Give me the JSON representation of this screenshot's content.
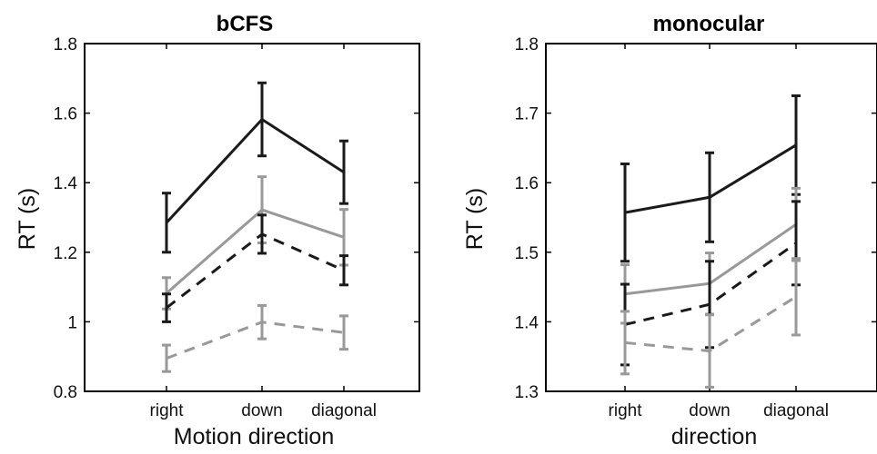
{
  "chart_data": [
    {
      "type": "line",
      "title": "bCFS",
      "xlabel": "Motion direction",
      "ylabel": "RT (s)",
      "categories": [
        "right",
        "down",
        "diagonal"
      ],
      "ylim": [
        0.8,
        1.8
      ],
      "yticks": [
        "0.8",
        "1",
        "1.2",
        "1.4",
        "1.6",
        "1.8"
      ],
      "grid": false,
      "series": [
        {
          "color": "#1a1a1a",
          "dash": false,
          "values": [
            1.285,
            1.582,
            1.43
          ],
          "errors": [
            0.085,
            0.105,
            0.09
          ]
        },
        {
          "color": "#999999",
          "dash": false,
          "values": [
            1.082,
            1.322,
            1.243
          ],
          "errors": [
            0.045,
            0.095,
            0.08
          ]
        },
        {
          "color": "#1a1a1a",
          "dash": true,
          "values": [
            1.04,
            1.252,
            1.148
          ],
          "errors": [
            0.04,
            0.055,
            0.042
          ]
        },
        {
          "color": "#999999",
          "dash": true,
          "values": [
            0.895,
            0.999,
            0.969
          ],
          "errors": [
            0.038,
            0.048,
            0.048
          ]
        }
      ]
    },
    {
      "type": "line",
      "title": "monocular",
      "xlabel": "direction",
      "ylabel": "RT (s)",
      "categories": [
        "right",
        "down",
        "diagonal"
      ],
      "ylim": [
        1.3,
        1.8
      ],
      "yticks": [
        "1.3",
        "1.4",
        "1.5",
        "1.6",
        "1.7",
        "1.8"
      ],
      "grid": false,
      "series": [
        {
          "color": "#1a1a1a",
          "dash": false,
          "values": [
            1.557,
            1.579,
            1.654
          ],
          "errors": [
            0.07,
            0.064,
            0.071
          ]
        },
        {
          "color": "#999999",
          "dash": false,
          "values": [
            1.44,
            1.455,
            1.54
          ],
          "errors": [
            0.042,
            0.044,
            0.052
          ]
        },
        {
          "color": "#1a1a1a",
          "dash": true,
          "values": [
            1.396,
            1.425,
            1.513
          ],
          "errors": [
            0.058,
            0.062,
            0.06
          ]
        },
        {
          "color": "#999999",
          "dash": true,
          "values": [
            1.37,
            1.358,
            1.436
          ],
          "errors": [
            0.045,
            0.052,
            0.055
          ]
        }
      ]
    }
  ]
}
